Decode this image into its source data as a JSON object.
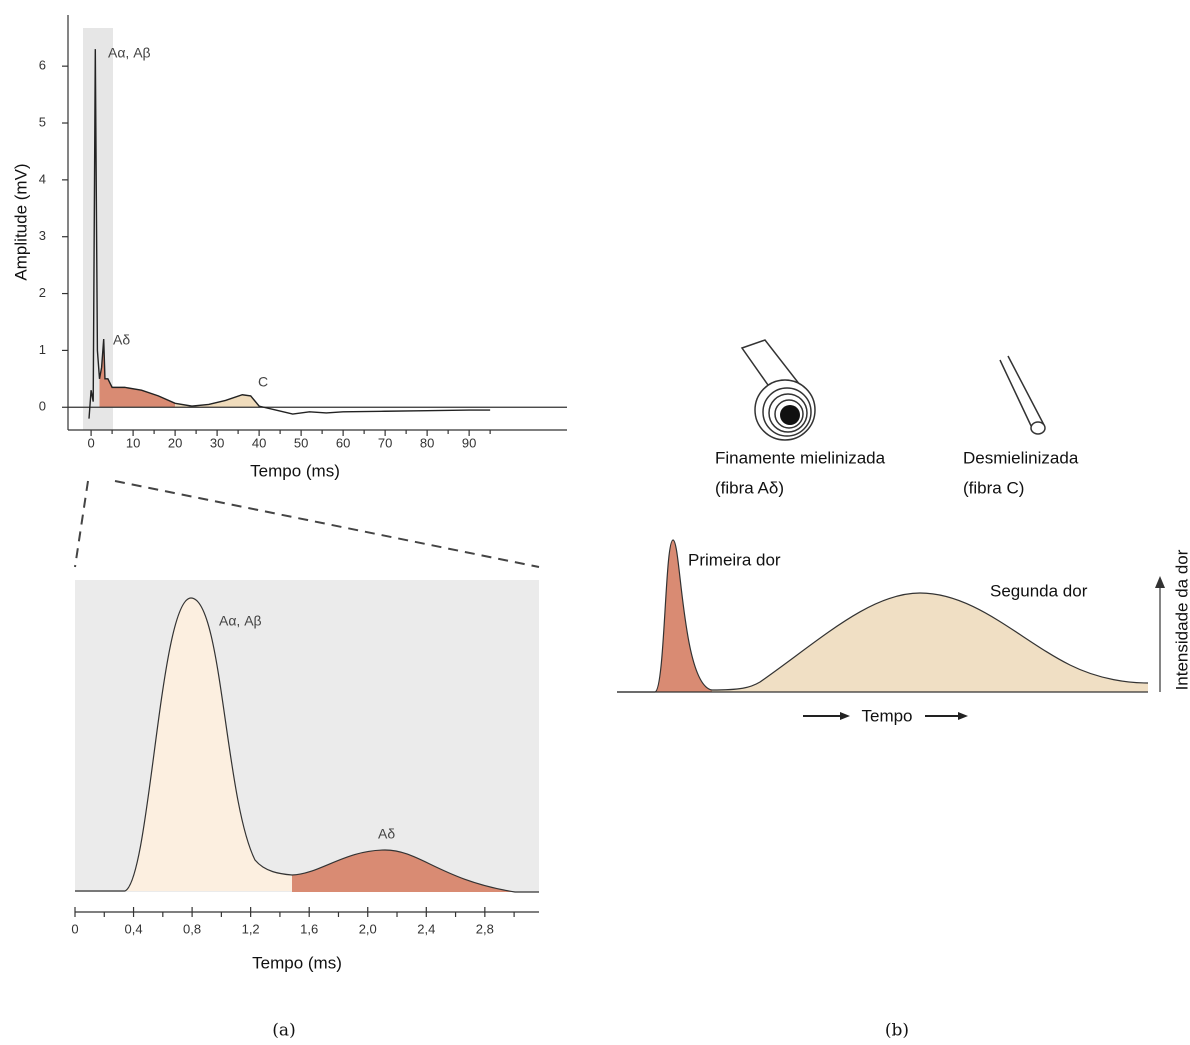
{
  "chart_data": [
    {
      "type": "line",
      "xlabel": "Tempo (ms)",
      "ylabel": "Amplitude (mV)",
      "xlim": [
        -5.5,
        113.3
      ],
      "ylim": [
        -0.4,
        6.9
      ],
      "xticks": [
        0,
        10,
        20,
        30,
        40,
        50,
        60,
        70,
        80,
        90
      ],
      "minor_xticks": [
        5,
        15,
        25,
        35,
        45,
        55,
        65,
        75,
        85,
        95
      ],
      "yticks": [
        0,
        1,
        2,
        3,
        4,
        5,
        6
      ],
      "zero_line": true,
      "x": [
        -0.5,
        0,
        0.5,
        1,
        1.5,
        2,
        2.5,
        3,
        3.3,
        4,
        5,
        8,
        12,
        16,
        20,
        24,
        28,
        32,
        36,
        38,
        40,
        44,
        48,
        52,
        56,
        60,
        70,
        80,
        90,
        95
      ],
      "series": [
        {
          "color": "#222222",
          "values": [
            -0.2,
            0.3,
            0.1,
            6.3,
            1,
            0.5,
            0.7,
            1.2,
            0.5,
            0.5,
            0.35,
            0.35,
            0.3,
            0.2,
            0.07,
            0.02,
            0.05,
            0.12,
            0.22,
            0.2,
            0.02,
            -0.05,
            -0.12,
            -0.08,
            -0.1,
            -0.08,
            -0.07,
            -0.06,
            -0.05,
            -0.05
          ]
        }
      ],
      "regions": [
        {
          "xlim": [
            2,
            20
          ],
          "color": "#d98b73"
        },
        {
          "xlim": [
            20,
            41
          ],
          "color": "#f0dcbc"
        }
      ],
      "annotations": [
        "Aα, Aβ",
        "Aδ",
        "C"
      ]
    },
    {
      "type": "line",
      "xlabel": "Tempo (ms)",
      "xlim": [
        0,
        3.17
      ],
      "xticks": [
        0,
        {
          "value": 0.4,
          "label": "0,4"
        },
        {
          "value": 0.8,
          "label": "0,8"
        },
        {
          "value": 1.2,
          "label": "1,2"
        },
        {
          "value": 1.6,
          "label": "1,6"
        },
        {
          "value": 2.0,
          "label": "2,0"
        },
        {
          "value": 2.4,
          "label": "2,4"
        },
        {
          "value": 2.8,
          "label": "2,8"
        }
      ],
      "minor_xticks": [
        0.2,
        0.6,
        1.0,
        1.4,
        1.8,
        2.2,
        2.6,
        3.0
      ],
      "annotations": [
        "Aα, Aβ",
        "Aδ"
      ]
    }
  ],
  "panel_b": {
    "fibers": [
      {
        "name": "Finamente mielinizada",
        "detail": "(fibra Aδ)"
      },
      {
        "name": "Desmielinizada",
        "detail": "(fibra C)"
      }
    ],
    "peaks": [
      "Primeira dor",
      "Segunda dor"
    ],
    "xlabel": "Tempo",
    "ylabel": "Intensidade da dor"
  },
  "captions": [
    "(a)",
    "(b)"
  ]
}
